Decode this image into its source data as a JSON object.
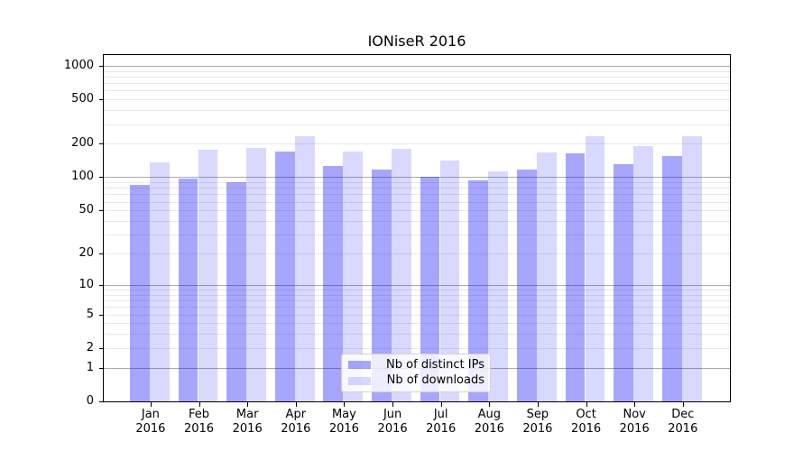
{
  "figure": {
    "title": "IONiseR 2016"
  },
  "chart_data": {
    "type": "bar",
    "title": "IONiseR 2016",
    "yscale": "log1p",
    "grid": true,
    "categories": [
      "Jan",
      "Feb",
      "Mar",
      "Apr",
      "May",
      "Jun",
      "Jul",
      "Aug",
      "Sep",
      "Oct",
      "Nov",
      "Dec"
    ],
    "x_year_label": "2016",
    "series": [
      {
        "name": "Nb of distinct IPs",
        "color": "rgba(0,0,255,0.35)",
        "values": [
          86,
          98,
          91,
          170,
          126,
          117,
          100,
          93,
          118,
          165,
          130,
          155
        ]
      },
      {
        "name": "Nb of downloads",
        "color": "rgba(0,0,255,0.15)",
        "values": [
          136,
          178,
          184,
          236,
          170,
          180,
          141,
          114,
          167,
          235,
          189,
          235
        ]
      }
    ],
    "y_ticks": [
      0,
      1,
      2,
      5,
      10,
      20,
      50,
      100,
      200,
      500,
      1000
    ],
    "major_gridlines": [
      1,
      10,
      100,
      1000
    ],
    "ylim": [
      0,
      1248
    ],
    "legend_position": "lower-center"
  },
  "colors": {
    "bar_distinct_ips": "rgba(0,0,255,0.35)",
    "bar_downloads": "rgba(0,0,255,0.15)",
    "major_grid": "#ababab",
    "minor_grid": "#e8e8e8",
    "axis": "#000000",
    "legend_border": "#d2d2d2",
    "legend_background": "rgba(255,255,255,0.8)"
  }
}
